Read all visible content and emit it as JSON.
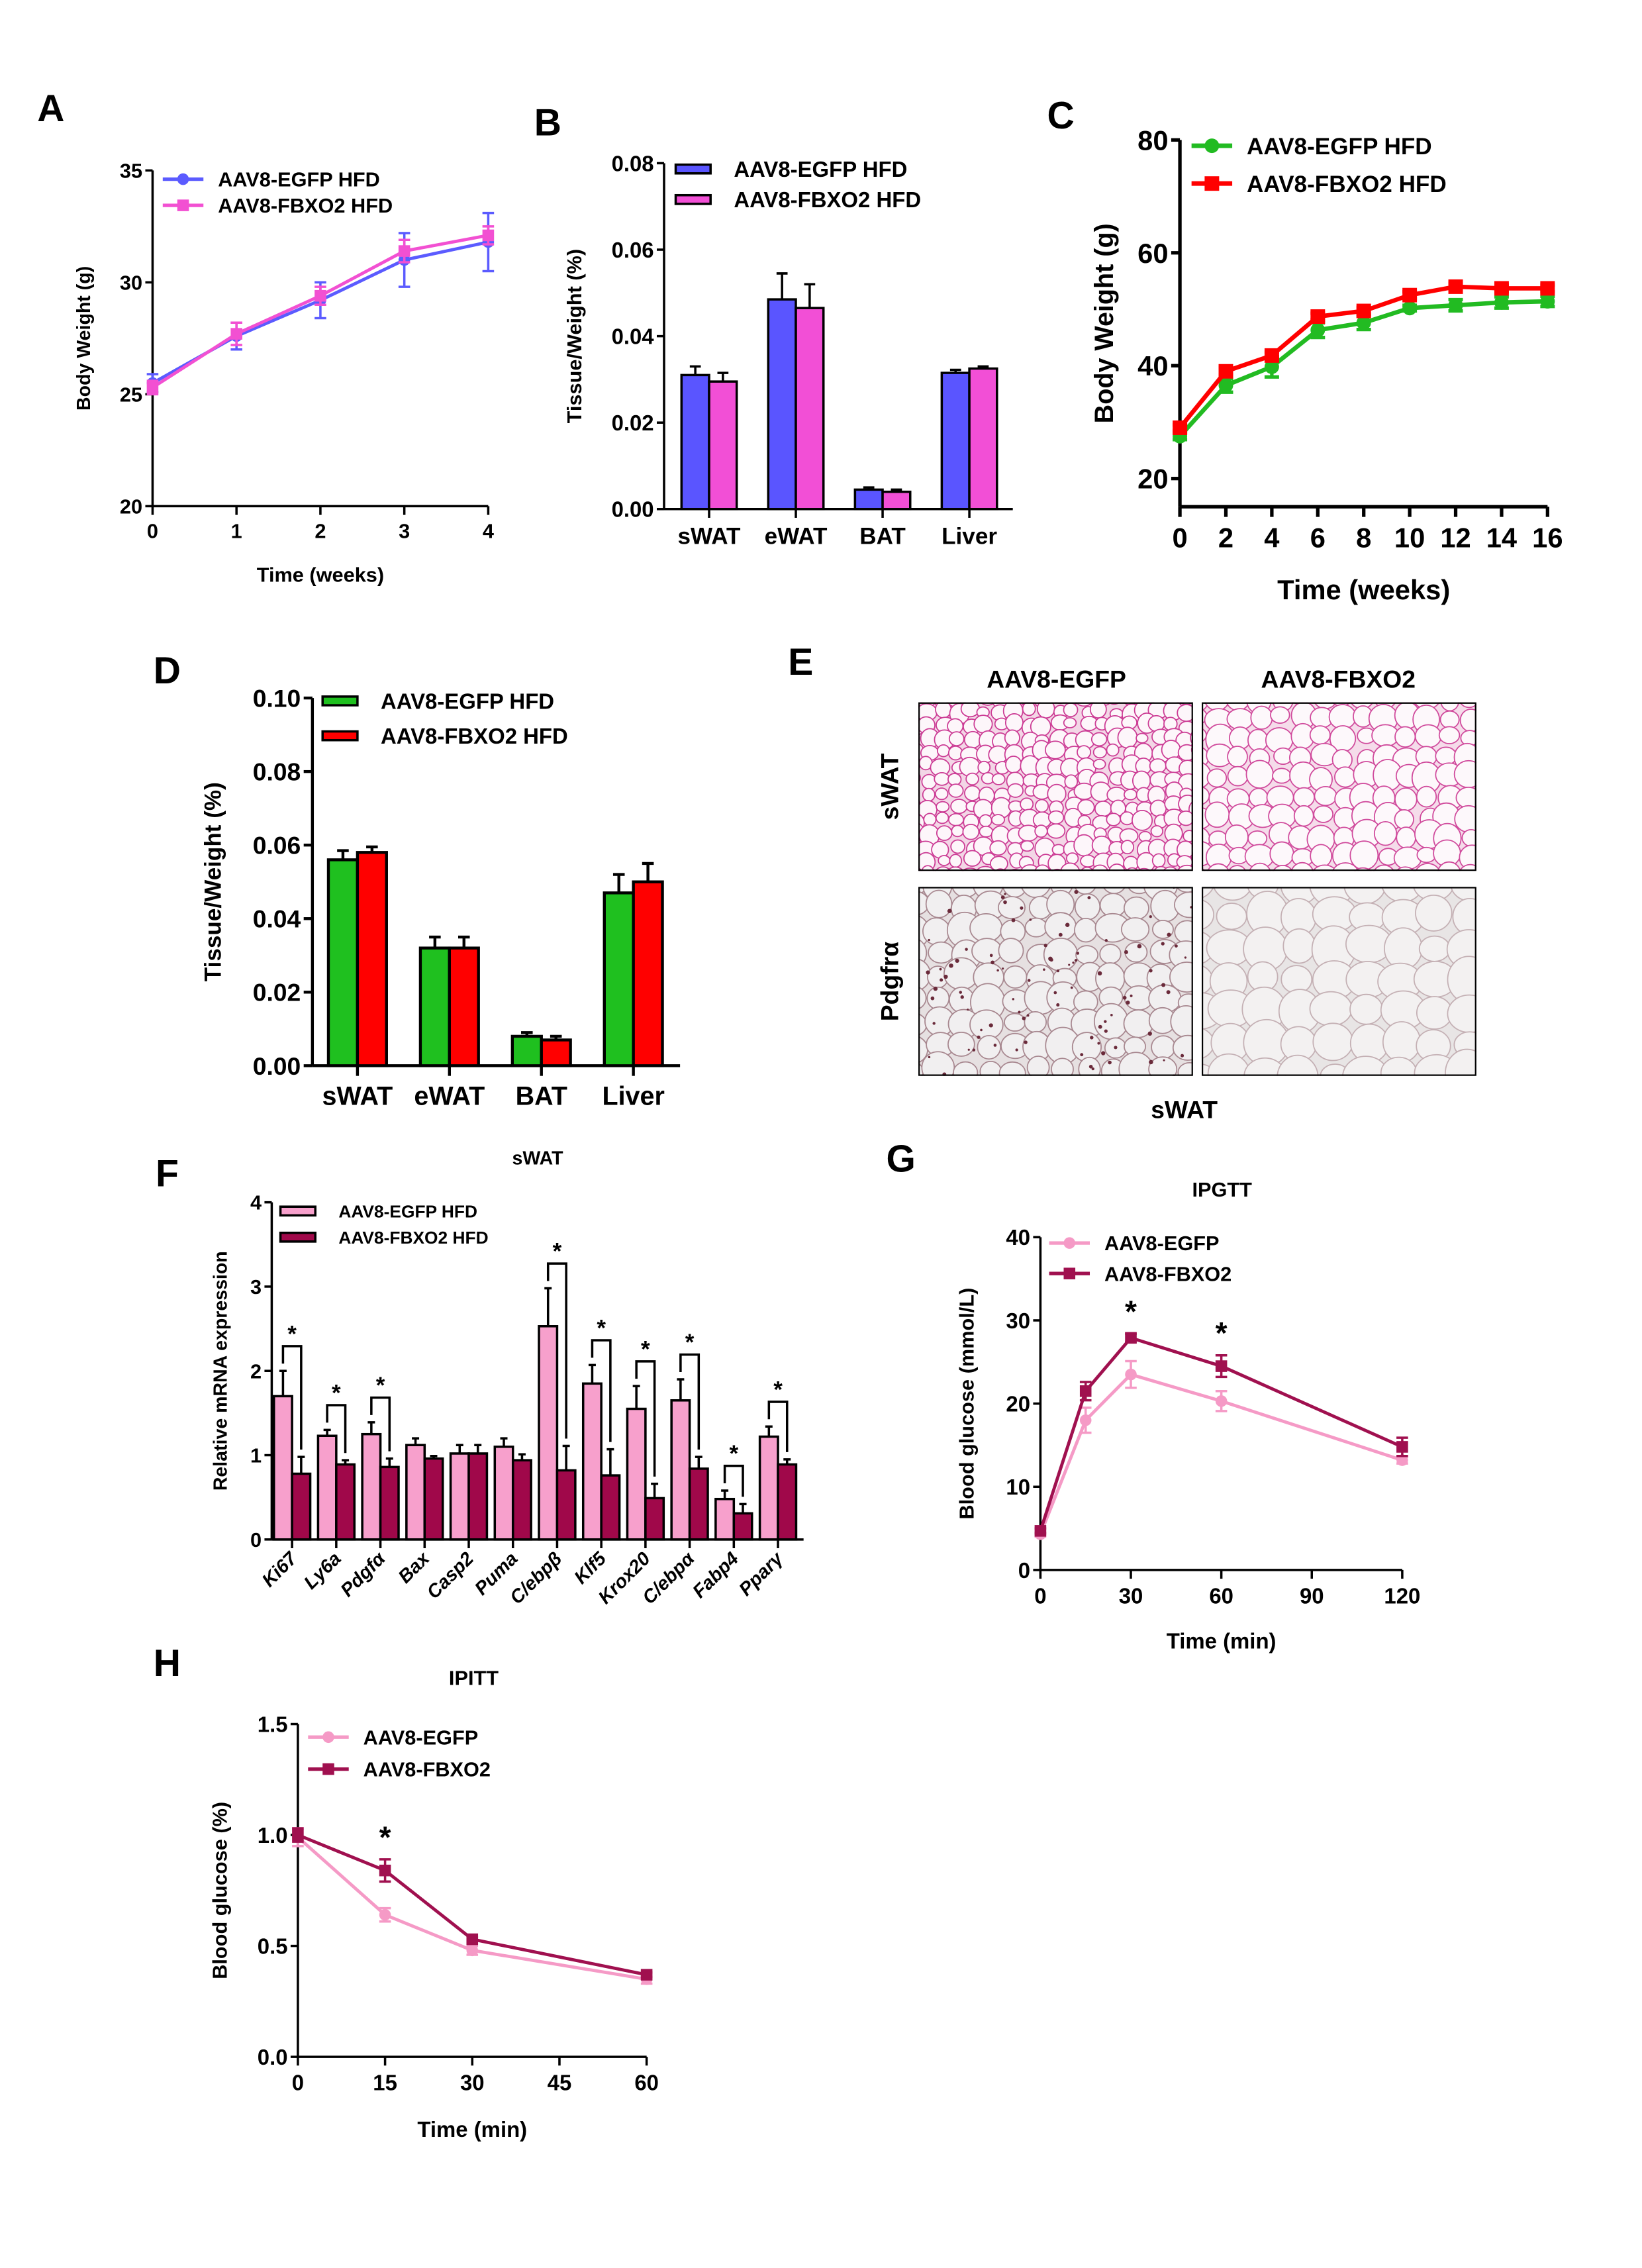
{
  "panel_e": {
    "letter": "E",
    "columns": [
      "AAV8-EGFP",
      "AAV8-FBXO2"
    ],
    "rows": [
      "sWAT",
      "Pdgfrα"
    ],
    "caption": "sWAT"
  },
  "chart_data": [
    {
      "panel": "A",
      "type": "line",
      "title": "",
      "xlabel": "Time (weeks)",
      "ylabel": "Body Weight (g)",
      "xlim": [
        0,
        4
      ],
      "ylim": [
        20,
        35
      ],
      "xticks": [
        0,
        1,
        2,
        3,
        4
      ],
      "yticks": [
        20,
        25,
        30,
        35
      ],
      "grid": false,
      "legend": "top-left",
      "series": [
        {
          "name": "AAV8-EGFP HFD",
          "color": "#5b5bff",
          "marker": "circle",
          "x": [
            0,
            1,
            2,
            3,
            4
          ],
          "y": [
            25.5,
            27.6,
            29.2,
            31.0,
            31.8
          ],
          "err": [
            0.4,
            0.6,
            0.8,
            1.2,
            1.3
          ]
        },
        {
          "name": "AAV8-FBXO2 HFD",
          "color": "#f250d2",
          "marker": "square",
          "x": [
            0,
            1,
            2,
            3,
            4
          ],
          "y": [
            25.3,
            27.7,
            29.4,
            31.4,
            32.1
          ],
          "err": [
            0.3,
            0.5,
            0.4,
            0.5,
            0.4
          ]
        }
      ]
    },
    {
      "panel": "B",
      "type": "bar",
      "title": "",
      "xlabel": "",
      "ylabel": "Tissue/Weight (%)",
      "categories": [
        "sWAT",
        "eWAT",
        "BAT",
        "Liver"
      ],
      "ylim": [
        0,
        0.08
      ],
      "yticks": [
        "0.00",
        "0.02",
        "0.04",
        "0.06",
        "0.08"
      ],
      "grid": false,
      "legend": "top-left",
      "series": [
        {
          "name": "AAV8-EGFP HFD",
          "color": "#5a55ff",
          "values": [
            0.031,
            0.0485,
            0.0045,
            0.0315
          ],
          "err": [
            0.002,
            0.006,
            0.0005,
            0.0007
          ]
        },
        {
          "name": "AAV8-FBXO2 HFD",
          "color": "#f24fd6",
          "values": [
            0.0295,
            0.0465,
            0.004,
            0.0325
          ],
          "err": [
            0.002,
            0.0055,
            0.0005,
            0.0005
          ]
        }
      ]
    },
    {
      "panel": "C",
      "type": "line",
      "title": "",
      "xlabel": "Time (weeks)",
      "ylabel": "Body Weight (g)",
      "xlim": [
        0,
        16
      ],
      "ylim": [
        15,
        80
      ],
      "xticks": [
        0,
        2,
        4,
        6,
        8,
        10,
        12,
        14,
        16
      ],
      "yticks": [
        20,
        40,
        60,
        80
      ],
      "grid": false,
      "legend": "top-left",
      "series": [
        {
          "name": "AAV8-EGFP HFD",
          "color": "#22bb22",
          "marker": "circle",
          "x": [
            0,
            2,
            4,
            6,
            8,
            10,
            12,
            14,
            16
          ],
          "y": [
            27.5,
            36.5,
            39.8,
            46.3,
            47.6,
            50.2,
            50.7,
            51.2,
            51.4
          ],
          "err": [
            0.6,
            1.2,
            1.8,
            1.3,
            1.2,
            0.5,
            1.0,
            1.0,
            0.9
          ]
        },
        {
          "name": "AAV8-FBXO2 HFD",
          "color": "#ff0000",
          "marker": "square",
          "x": [
            0,
            2,
            4,
            6,
            8,
            10,
            12,
            14,
            16
          ],
          "y": [
            29.0,
            39.0,
            41.8,
            48.7,
            49.7,
            52.5,
            54.0,
            53.7,
            53.7
          ],
          "err": [
            0.5,
            0.6,
            0.6,
            0.6,
            0.6,
            0.6,
            0.6,
            0.6,
            0.6
          ]
        }
      ]
    },
    {
      "panel": "D",
      "type": "bar",
      "title": "",
      "xlabel": "",
      "ylabel": "Tissue/Weight (%)",
      "categories": [
        "sWAT",
        "eWAT",
        "BAT",
        "Liver"
      ],
      "ylim": [
        0,
        0.1
      ],
      "yticks": [
        "0.00",
        "0.02",
        "0.04",
        "0.06",
        "0.08",
        "0.10"
      ],
      "grid": false,
      "legend": "top-left",
      "series": [
        {
          "name": "AAV8-EGFP HFD",
          "color": "#1fc01f",
          "values": [
            0.056,
            0.032,
            0.008,
            0.047
          ],
          "err": [
            0.0025,
            0.003,
            0.001,
            0.005
          ]
        },
        {
          "name": "AAV8-FBXO2 HFD",
          "color": "#ff0000",
          "values": [
            0.058,
            0.032,
            0.007,
            0.05
          ],
          "err": [
            0.0015,
            0.003,
            0.001,
            0.005
          ]
        }
      ]
    },
    {
      "panel": "F",
      "type": "bar",
      "title": "sWAT",
      "xlabel": "",
      "ylabel": "Relative mRNA expression",
      "categories": [
        "Ki67",
        "Ly6a",
        "Pdgfα",
        "Bax",
        "Casp2",
        "Puma",
        "C/ebpβ",
        "Klf5",
        "Krox20",
        "C/ebpα",
        "Fabp4",
        "Pparγ"
      ],
      "ylim": [
        0,
        4
      ],
      "yticks": [
        0,
        1,
        2,
        3,
        4
      ],
      "grid": false,
      "legend": "top-left",
      "significance_marker": "*",
      "significant": [
        true,
        true,
        true,
        false,
        false,
        false,
        true,
        true,
        true,
        true,
        true,
        true
      ],
      "series": [
        {
          "name": "AAV8-EGFP HFD",
          "color": "#f7a0cc",
          "values": [
            1.7,
            1.23,
            1.25,
            1.12,
            1.02,
            1.1,
            2.53,
            1.85,
            1.55,
            1.65,
            0.48,
            1.22
          ],
          "err": [
            0.3,
            0.07,
            0.14,
            0.08,
            0.1,
            0.1,
            0.45,
            0.22,
            0.27,
            0.25,
            0.1,
            0.12
          ]
        },
        {
          "name": "AAV8-FBXO2 HFD",
          "color": "#a0084a",
          "values": [
            0.78,
            0.89,
            0.86,
            0.96,
            1.02,
            0.94,
            0.82,
            0.76,
            0.49,
            0.84,
            0.31,
            0.89
          ],
          "err": [
            0.2,
            0.05,
            0.1,
            0.03,
            0.1,
            0.07,
            0.29,
            0.31,
            0.17,
            0.14,
            0.11,
            0.06
          ]
        }
      ]
    },
    {
      "panel": "G",
      "type": "line",
      "title": "IPGTT",
      "xlabel": "Time (min)",
      "ylabel": "Blood glucose (mmol/L)",
      "xlim": [
        0,
        120
      ],
      "ylim": [
        0,
        40
      ],
      "xticks": [
        0,
        30,
        60,
        90,
        120
      ],
      "yticks": [
        0,
        10,
        20,
        30,
        40
      ],
      "grid": false,
      "legend": "top-left",
      "annotations": [
        {
          "x": 30,
          "label": "*"
        },
        {
          "x": 60,
          "label": "*"
        }
      ],
      "series": [
        {
          "name": "AAV8-EGFP",
          "color": "#f59ac6",
          "marker": "circle",
          "x": [
            0,
            15,
            30,
            60,
            120
          ],
          "y": [
            4.3,
            18.0,
            23.5,
            20.3,
            13.2
          ],
          "err": [
            0.3,
            1.5,
            1.6,
            1.2,
            0.4
          ]
        },
        {
          "name": "AAV8-FBXO2",
          "color": "#a0104f",
          "marker": "square",
          "x": [
            0,
            15,
            30,
            60,
            120
          ],
          "y": [
            4.7,
            21.5,
            27.9,
            24.5,
            14.8
          ],
          "err": [
            0.3,
            1.1,
            0.5,
            1.3,
            1.1
          ]
        }
      ]
    },
    {
      "panel": "H",
      "type": "line",
      "title": "IPITT",
      "xlabel": "Time (min)",
      "ylabel": "Blood glucose (%)",
      "xlim": [
        0,
        60
      ],
      "ylim": [
        0,
        1.5
      ],
      "xticks": [
        0,
        15,
        30,
        45,
        60
      ],
      "yticks": [
        "0.0",
        "0.5",
        "1.0",
        "1.5"
      ],
      "grid": false,
      "legend": "top-left",
      "annotations": [
        {
          "x": 15,
          "label": "*"
        }
      ],
      "series": [
        {
          "name": "AAV8-EGFP",
          "color": "#f59ac6",
          "marker": "circle",
          "x": [
            0,
            15,
            30,
            60
          ],
          "y": [
            0.99,
            0.64,
            0.48,
            0.35
          ],
          "err": [
            0.04,
            0.03,
            0.02,
            0.02
          ]
        },
        {
          "name": "AAV8-FBXO2",
          "color": "#a0104f",
          "marker": "square",
          "x": [
            0,
            15,
            30,
            60
          ],
          "y": [
            1.0,
            0.84,
            0.53,
            0.37
          ],
          "err": [
            0.03,
            0.05,
            0.01,
            0.01
          ]
        }
      ]
    }
  ]
}
